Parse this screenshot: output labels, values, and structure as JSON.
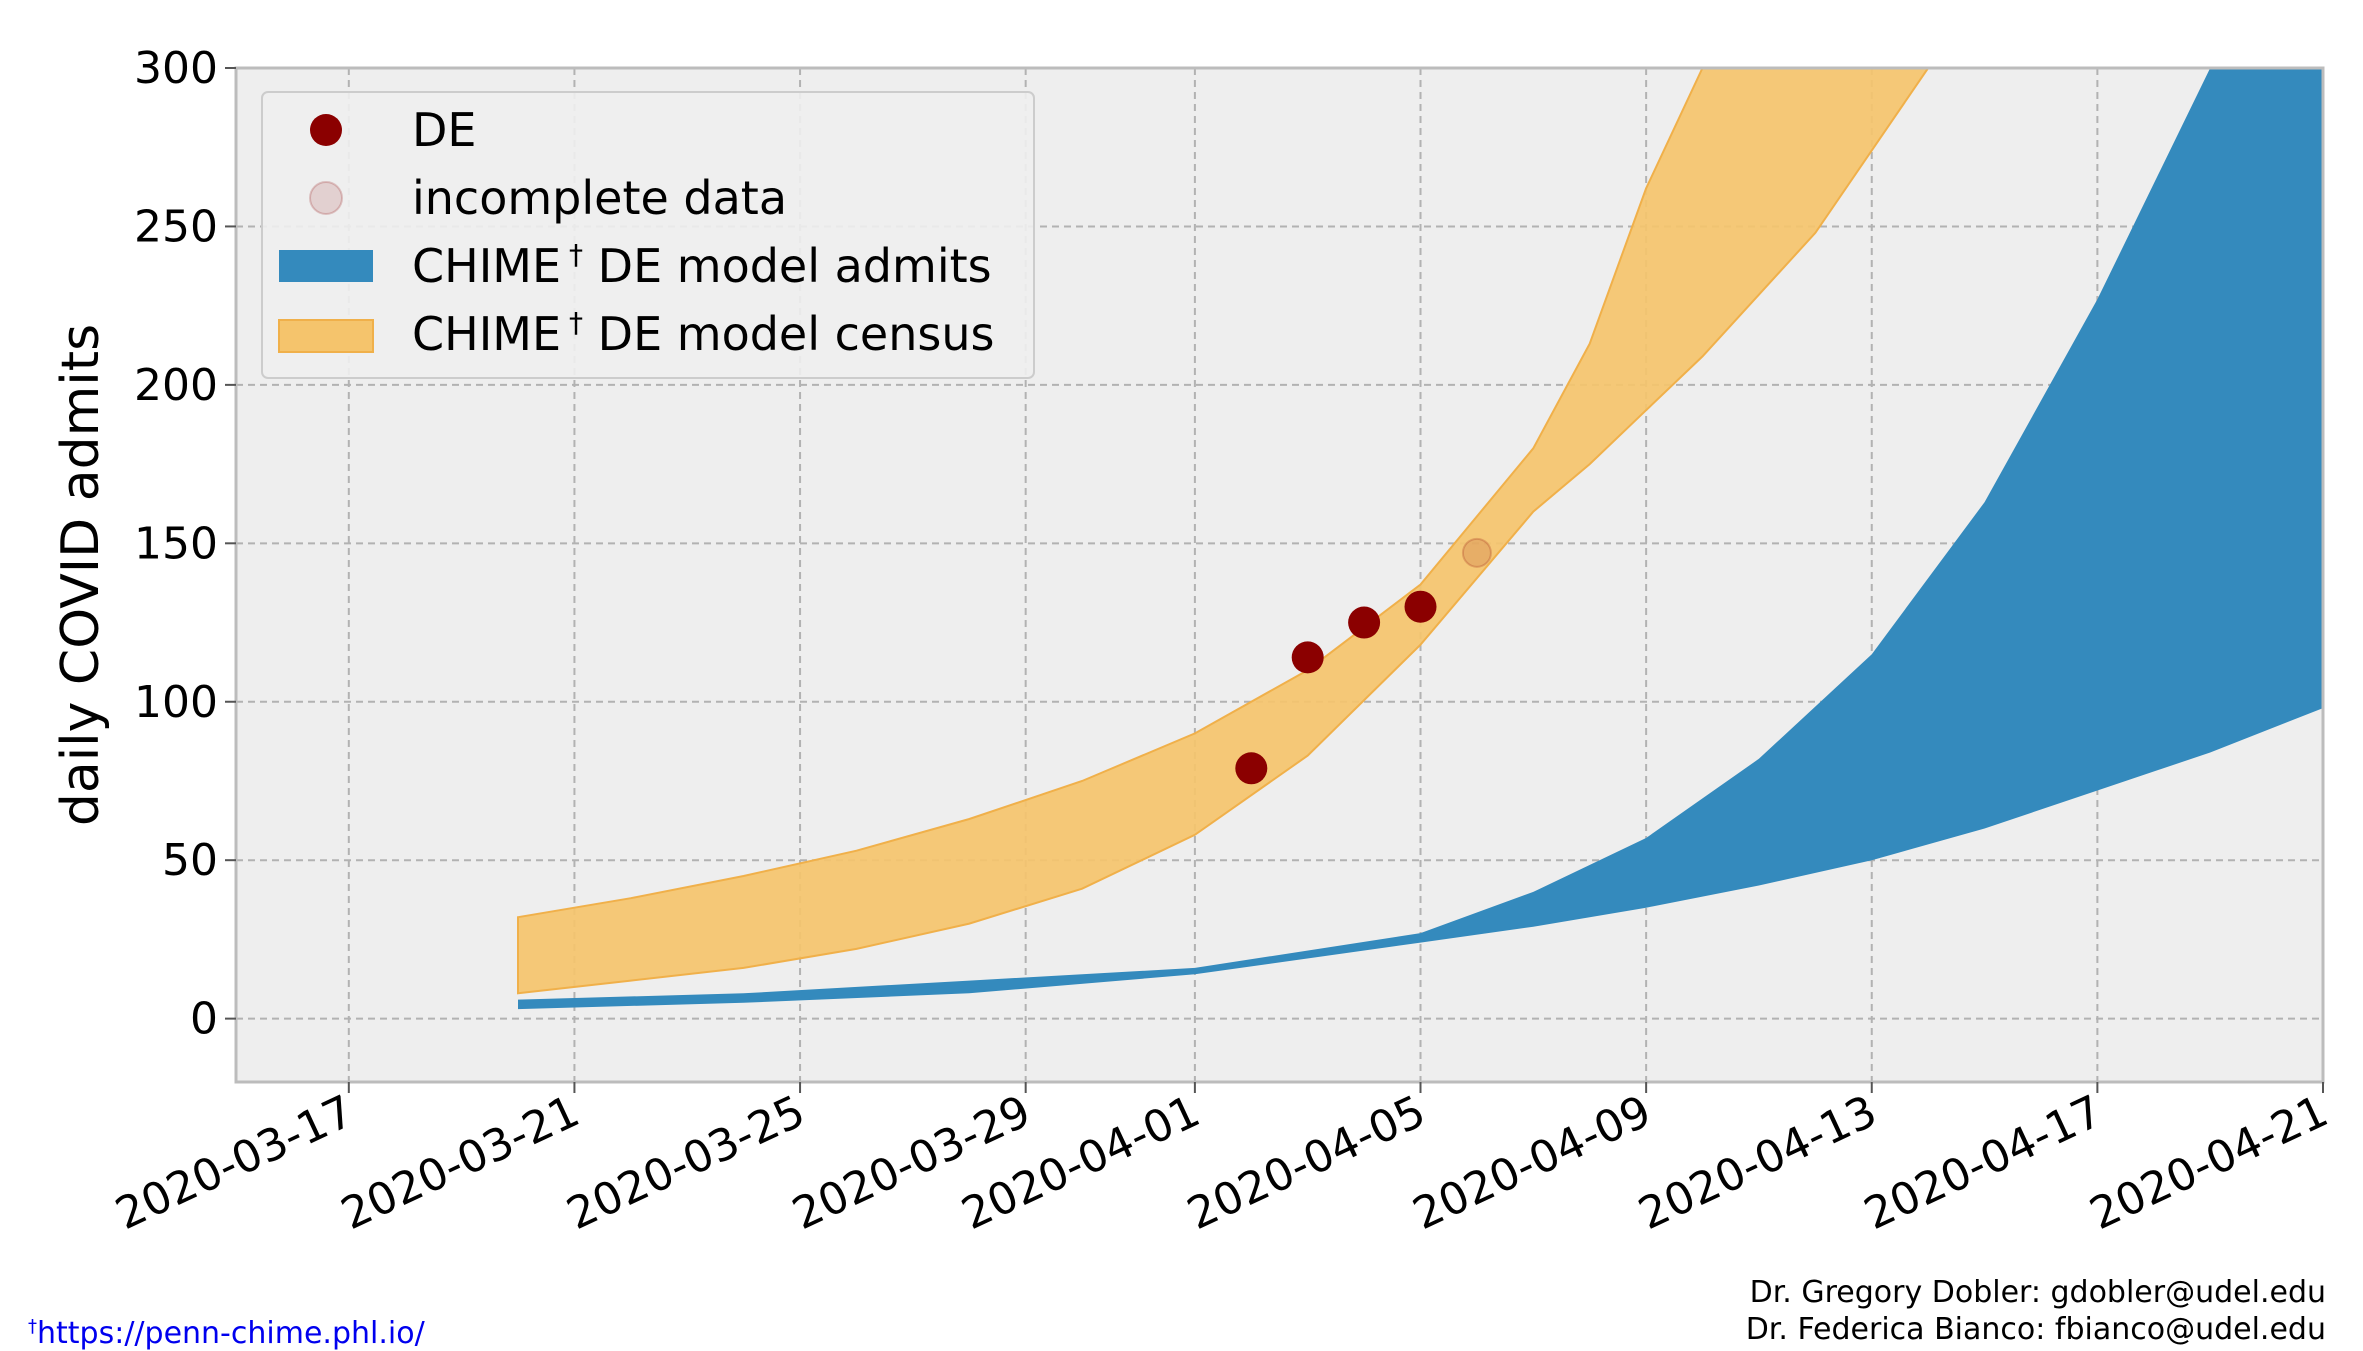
{
  "chart_data": {
    "type": "area",
    "title": "",
    "xlabel": "",
    "ylabel": "daily COVID admits",
    "ylim": [
      -20,
      300
    ],
    "xlim": [
      "2020-03-15",
      "2020-04-21"
    ],
    "y_ticks": [
      0,
      50,
      100,
      150,
      200,
      250,
      300
    ],
    "x_ticks": [
      "2020-03-17",
      "2020-03-21",
      "2020-03-25",
      "2020-03-29",
      "2020-04-01",
      "2020-04-05",
      "2020-04-09",
      "2020-04-13",
      "2020-04-17",
      "2020-04-21"
    ],
    "grid": true,
    "legend_position": "top-left",
    "legend": [
      {
        "label": "DE",
        "kind": "marker",
        "color": "#8b0000"
      },
      {
        "label": "incomplete data",
        "kind": "marker-faded",
        "color": "#8b0000"
      },
      {
        "label": "CHIME",
        "superscript": "†",
        "suffix": " DE model admits",
        "kind": "band",
        "color": "#348abd"
      },
      {
        "label": "CHIME",
        "superscript": "†",
        "suffix": " DE model census",
        "kind": "band",
        "color": "#f5c46c"
      }
    ],
    "bands": [
      {
        "name": "CHIME DE model census",
        "color": "#f5c46c",
        "points": [
          {
            "x": "2020-03-20",
            "low": 8,
            "high": 32
          },
          {
            "x": "2020-03-22",
            "low": 12,
            "high": 38
          },
          {
            "x": "2020-03-24",
            "low": 16,
            "high": 45
          },
          {
            "x": "2020-03-26",
            "low": 22,
            "high": 53
          },
          {
            "x": "2020-03-28",
            "low": 30,
            "high": 63
          },
          {
            "x": "2020-03-30",
            "low": 41,
            "high": 75
          },
          {
            "x": "2020-04-01",
            "low": 58,
            "high": 90
          },
          {
            "x": "2020-04-03",
            "low": 83,
            "high": 110
          },
          {
            "x": "2020-04-05",
            "low": 118,
            "high": 137
          },
          {
            "x": "2020-04-07",
            "low": 160,
            "high": 180
          },
          {
            "x": "2020-04-08",
            "low": 175,
            "high": 213
          },
          {
            "x": "2020-04-09",
            "low": 192,
            "high": 262
          },
          {
            "x": "2020-04-10",
            "low": 209,
            "high": 300
          },
          {
            "x": "2020-04-12",
            "low": 248,
            "high": 300
          },
          {
            "x": "2020-04-14",
            "low": 300,
            "high": 300
          }
        ]
      },
      {
        "name": "CHIME DE model admits",
        "color": "#348abd",
        "points": [
          {
            "x": "2020-03-20",
            "low": 3,
            "high": 6
          },
          {
            "x": "2020-03-24",
            "low": 5,
            "high": 8
          },
          {
            "x": "2020-03-28",
            "low": 8,
            "high": 12
          },
          {
            "x": "2020-04-01",
            "low": 14,
            "high": 16
          },
          {
            "x": "2020-04-05",
            "low": 24,
            "high": 27
          },
          {
            "x": "2020-04-07",
            "low": 29,
            "high": 40
          },
          {
            "x": "2020-04-09",
            "low": 35,
            "high": 57
          },
          {
            "x": "2020-04-11",
            "low": 42,
            "high": 82
          },
          {
            "x": "2020-04-13",
            "low": 50,
            "high": 115
          },
          {
            "x": "2020-04-15",
            "low": 60,
            "high": 163
          },
          {
            "x": "2020-04-17",
            "low": 72,
            "high": 227
          },
          {
            "x": "2020-04-19",
            "low": 84,
            "high": 300
          },
          {
            "x": "2020-04-21",
            "low": 98,
            "high": 300
          }
        ]
      }
    ],
    "series": [
      {
        "name": "DE",
        "color": "#8b0000",
        "points": [
          {
            "x": "2020-04-02",
            "y": 79
          },
          {
            "x": "2020-04-03",
            "y": 114
          },
          {
            "x": "2020-04-04",
            "y": 125
          },
          {
            "x": "2020-04-05",
            "y": 130
          }
        ]
      },
      {
        "name": "incomplete data",
        "color": "#8b0000",
        "faded": true,
        "points": [
          {
            "x": "2020-04-06",
            "y": 147
          }
        ]
      }
    ]
  },
  "footnote": {
    "marker": "†",
    "url_text": "https://penn-chime.phl.io/"
  },
  "credits": [
    "Dr. Gregory Dobler: gdobler@udel.edu",
    "Dr. Federica Bianco: fbianco@udel.edu"
  ]
}
